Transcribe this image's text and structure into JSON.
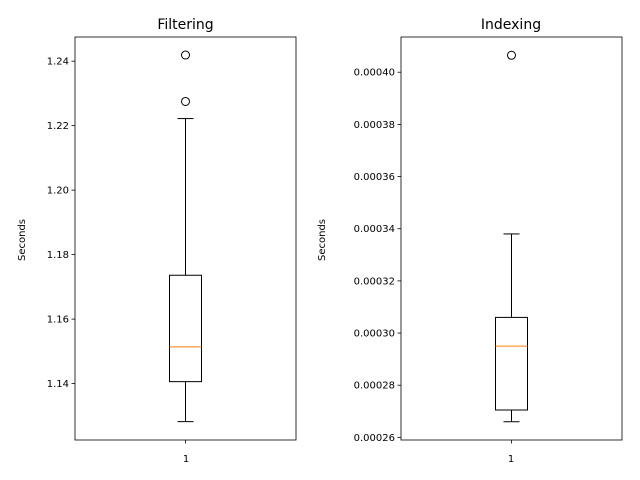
{
  "chart_data": [
    {
      "type": "box",
      "title": "Filtering",
      "ylabel": "Seconds",
      "xlabel": "",
      "categories": [
        "1"
      ],
      "ylim": [
        1.1225,
        1.2475
      ],
      "yticks": [
        1.14,
        1.16,
        1.18,
        1.2,
        1.22,
        1.24
      ],
      "yticklabels": [
        "1.14",
        "1.16",
        "1.18",
        "1.20",
        "1.22",
        "1.24"
      ],
      "grid": false,
      "box": {
        "whisker_low": 1.1282,
        "q1": 1.1406,
        "median": 1.1514,
        "q3": 1.1736,
        "whisker_high": 1.2222,
        "outliers": [
          1.2275,
          1.2419
        ]
      },
      "colors": {
        "box": "#000000",
        "median": "#ff7f0e"
      }
    },
    {
      "type": "box",
      "title": "Indexing",
      "ylabel": "Seconds",
      "xlabel": "",
      "categories": [
        "1"
      ],
      "ylim": [
        0.000259,
        0.0004135
      ],
      "yticks": [
        0.00026,
        0.00028,
        0.0003,
        0.00032,
        0.00034,
        0.00036,
        0.00038,
        0.0004
      ],
      "yticklabels": [
        "0.00026",
        "0.00028",
        "0.00030",
        "0.00032",
        "0.00034",
        "0.00036",
        "0.00038",
        "0.00040"
      ],
      "grid": false,
      "box": {
        "whisker_low": 0.000266,
        "q1": 0.0002705,
        "median": 0.000295,
        "q3": 0.000306,
        "whisker_high": 0.000338,
        "outliers": [
          0.0004065
        ]
      },
      "colors": {
        "box": "#000000",
        "median": "#ff7f0e"
      }
    }
  ]
}
